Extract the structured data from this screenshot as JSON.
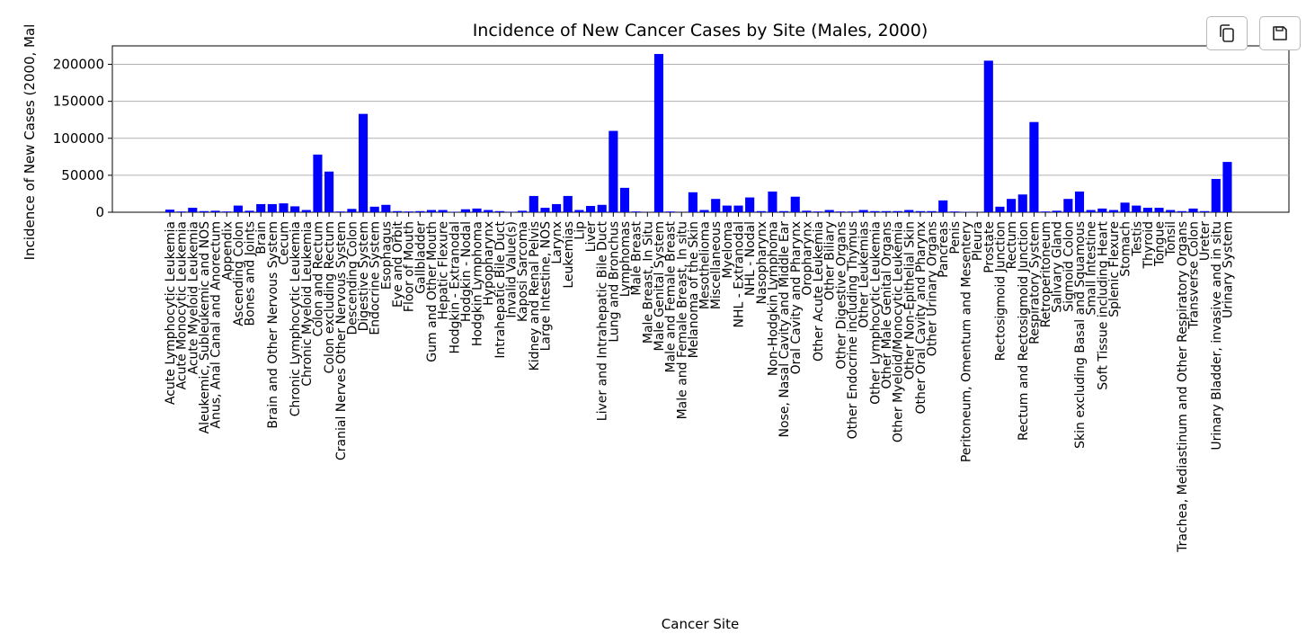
{
  "toolbar": {
    "copy_icon": "copy-icon",
    "save_icon": "floppy-disk-icon"
  },
  "chart_data": {
    "type": "bar",
    "title": "Incidence of New Cancer Cases by Site (Males, 2000)",
    "xlabel": "Cancer Site",
    "ylabel": "Incidence of New Cases (2000, Mal",
    "ylim": [
      0,
      225000
    ],
    "yticks": [
      0,
      50000,
      100000,
      150000,
      200000
    ],
    "grid": "y",
    "bar_color": "#0000ff",
    "categories": [
      "Acute Lymphocytic Leukemia",
      "Acute Monocytic Leukemia",
      "Acute Myeloid Leukemia",
      "Aleukemic, Subleukemic and NOS",
      "Anus, Anal Canal and Anorectum",
      "Appendix",
      "Ascending Colon",
      "Bones and Joints",
      "Brain",
      "Brain and Other Nervous System",
      "Cecum",
      "Chronic Lymphocytic Leukemia",
      "Chronic Myeloid Leukemia",
      "Colon and Rectum",
      "Colon excluding Rectum",
      "Cranial Nerves Other Nervous System",
      "Descending Colon",
      "Digestive System",
      "Endocrine System",
      "Esophagus",
      "Eye and Orbit",
      "Floor of Mouth",
      "Gallbladder",
      "Gum and Other Mouth",
      "Hepatic Flexure",
      "Hodgkin - Extranodal",
      "Hodgkin - Nodal",
      "Hodgkin Lymphoma",
      "Hypopharynx",
      "Intrahepatic Bile Duct",
      "Invalid Value(s)",
      "Kaposi Sarcoma",
      "Kidney and Renal Pelvis",
      "Large Intestine, NOS",
      "Larynx",
      "Leukemias",
      "Lip",
      "Liver",
      "Liver and Intrahepatic Bile Duct",
      "Lung and Bronchus",
      "Lymphomas",
      "Male Breast",
      "Male Breast, In Situ",
      "Male Genital System",
      "Male and Female Breast",
      "Male and Female Breast, In situ",
      "Melanoma of the Skin",
      "Mesothelioma",
      "Miscellaneous",
      "Myeloma",
      "NHL - Extranodal",
      "NHL - Nodal",
      "Nasopharynx",
      "Non-Hodgkin Lymphoma",
      "Nose, Nasal Cavity and Middle Ear",
      "Oral Cavity and Pharynx",
      "Oropharynx",
      "Other Acute Leukemia",
      "Other Biliary",
      "Other Digestive Organs",
      "Other Endocrine including Thymus",
      "Other Leukemias",
      "Other Lymphocytic Leukemia",
      "Other Male Genital Organs",
      "Other Myeloid/Monocytic Leukemia",
      "Other Non-Epithelial Skin",
      "Other Oral Cavity and Pharynx",
      "Other Urinary Organs",
      "Pancreas",
      "Penis",
      "Peritoneum, Omentum and Mesentery",
      "Pleura",
      "Prostate",
      "Rectosigmoid Junction",
      "Rectum",
      "Rectum and Rectosigmoid Junction",
      "Respiratory System",
      "Retroperitoneum",
      "Salivary Gland",
      "Sigmoid Colon",
      "Skin excluding Basal and Squamous",
      "Small Intestine",
      "Soft Tissue including Heart",
      "Splenic Flexure",
      "Stomach",
      "Testis",
      "Thyroid",
      "Tongue",
      "Tonsil",
      "Trachea, Mediastinum and Other Respiratory Organs",
      "Transverse Colon",
      "Ureter",
      "Urinary Bladder, invasive and in situ",
      "Urinary System"
    ],
    "values": [
      3500,
      1000,
      6000,
      1500,
      2000,
      1000,
      9000,
      2000,
      11000,
      11000,
      12000,
      8000,
      3000,
      78000,
      55000,
      1000,
      4500,
      133000,
      7500,
      10000,
      1500,
      1000,
      1500,
      3000,
      3000,
      500,
      4000,
      5000,
      3000,
      1500,
      500,
      2000,
      22000,
      6000,
      11000,
      22000,
      3000,
      8500,
      10000,
      110000,
      33000,
      1000,
      300,
      214000,
      1000,
      300,
      27000,
      3000,
      18000,
      9000,
      9000,
      20000,
      1500,
      28000,
      1500,
      21000,
      2000,
      1000,
      3000,
      1000,
      1000,
      3000,
      1500,
      1500,
      1500,
      3000,
      1500,
      1500,
      16000,
      1000,
      500,
      300,
      205000,
      7500,
      18000,
      24000,
      122000,
      1000,
      2000,
      18000,
      28000,
      3000,
      5000,
      3000,
      13000,
      9000,
      6000,
      6000,
      3000,
      1500,
      5000,
      1500,
      45000,
      68000
    ]
  }
}
